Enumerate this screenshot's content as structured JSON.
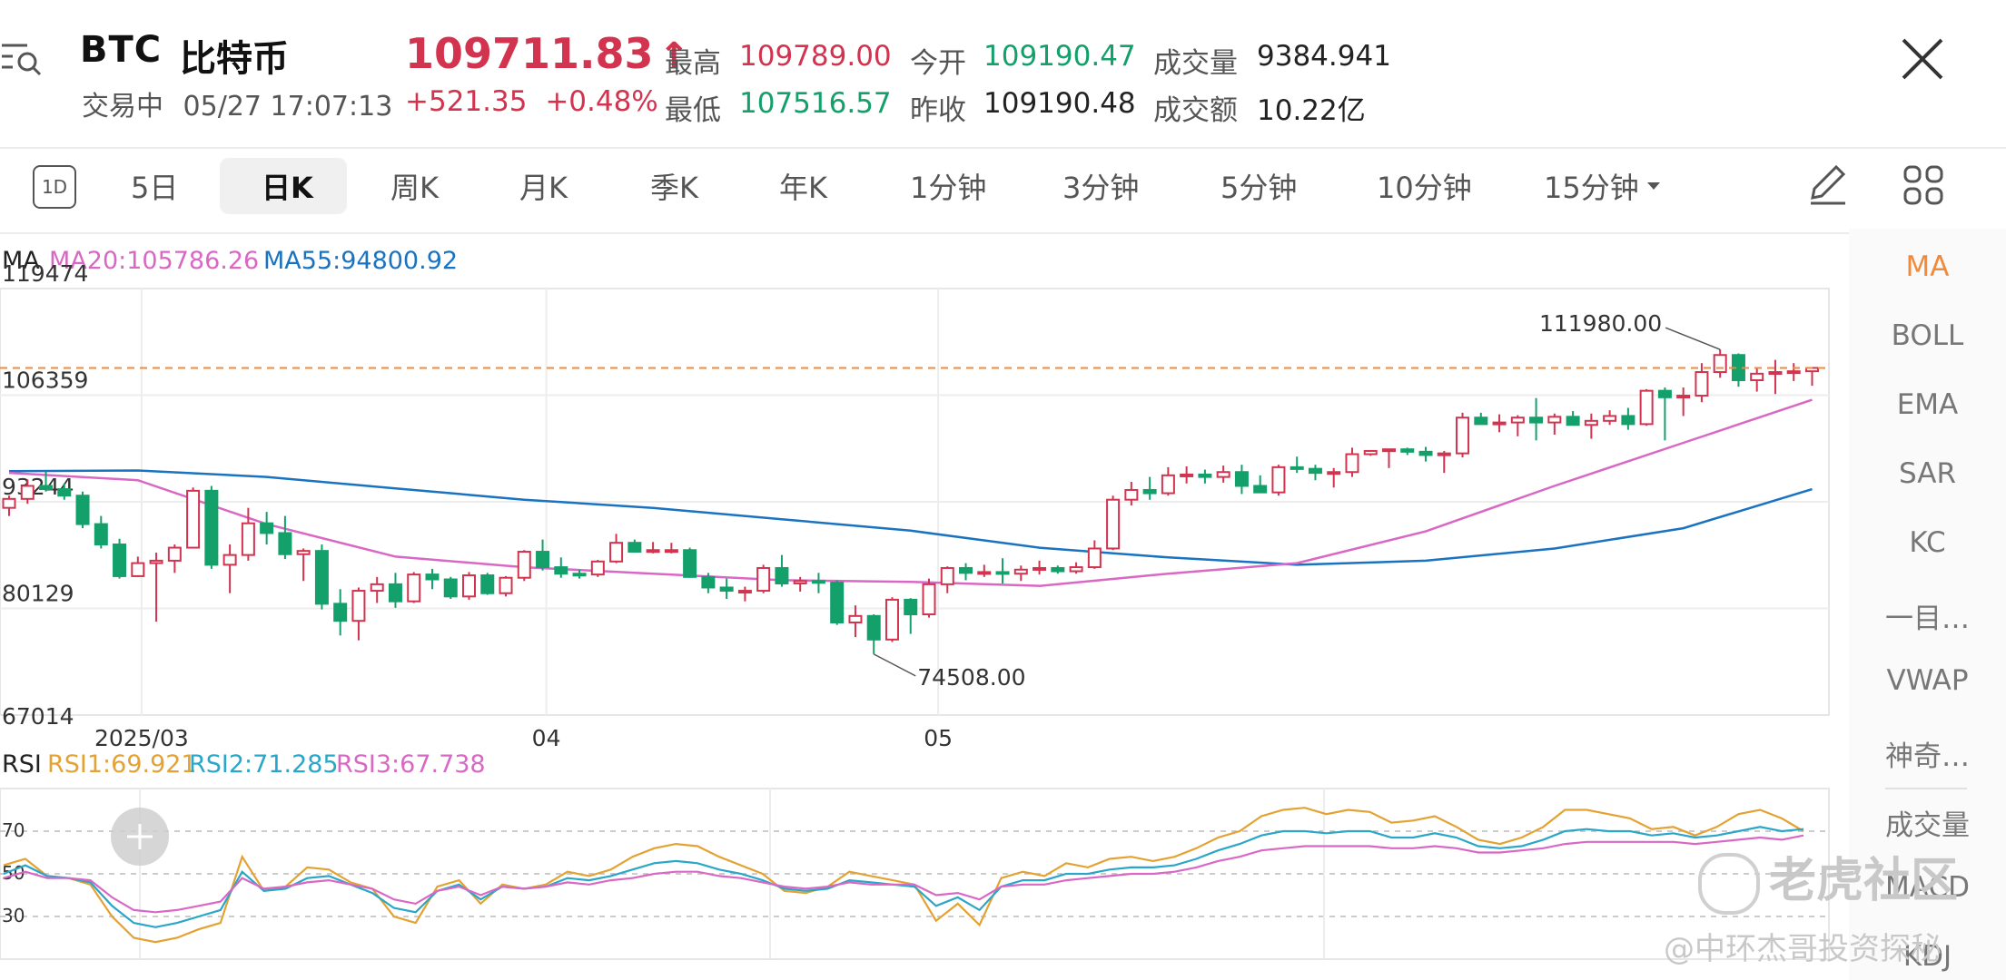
{
  "header": {
    "symbol": "BTC",
    "name": "比特币",
    "status": "交易中",
    "datetime": "05/27 17:07:13",
    "price": "109711.83",
    "price_arrow": "↑",
    "change": "+521.35",
    "change_pct": "+0.48%",
    "stats": {
      "high_label": "最高",
      "high": "109789.00",
      "low_label": "最低",
      "low": "107516.57",
      "open_label": "今开",
      "open": "109190.47",
      "prev_close_label": "昨收",
      "prev_close": "109190.48",
      "volume_label": "成交量",
      "volume": "9384.941",
      "turnover_label": "成交额",
      "turnover": "10.22亿"
    },
    "colors": {
      "up": "#d2334f",
      "down": "#13a06a"
    }
  },
  "toolbar": {
    "icon_1d": "1D",
    "tabs": [
      "5日",
      "日K",
      "周K",
      "月K",
      "季K",
      "年K",
      "1分钟",
      "3分钟",
      "5分钟",
      "10分钟",
      "15分钟"
    ],
    "active": "日K",
    "dropdown_icon": "caret-down-icon",
    "draw_icon": "pencil-icon",
    "layout_icon": "grid-icon"
  },
  "side_panel": {
    "items": [
      "MA",
      "BOLL",
      "EMA",
      "SAR",
      "KC",
      "一目…",
      "VWAP",
      "神奇…",
      "成交量",
      "MACD",
      "KDJ"
    ],
    "active": "MA"
  },
  "main_chart": {
    "legend_label": "MA",
    "ma20_label": "MA20:105786.26",
    "ma55_label": "MA55:94800.92",
    "y_ticks": [
      "119474",
      "106359",
      "93244",
      "80129",
      "67014"
    ],
    "x_ticks": [
      "2025/03",
      "04",
      "05"
    ],
    "high_marker": "111980.00",
    "low_marker": "74508.00",
    "colors": {
      "ma20": "#d968c5",
      "ma55": "#1a73c0",
      "current_line": "#f08a3c"
    }
  },
  "rsi_chart": {
    "legend_label": "RSI",
    "rsi1_label": "RSI1:69.921",
    "rsi2_label": "RSI2:71.285",
    "rsi3_label": "RSI3:67.738",
    "y_ticks": [
      "70",
      "50",
      "30"
    ],
    "colors": {
      "rsi1": "#e3a232",
      "rsi2": "#2aa6c8",
      "rsi3": "#d968c5"
    }
  },
  "watermark": {
    "brand": "老虎社区",
    "author": "@中环杰哥投资探秘"
  },
  "chart_data": [
    {
      "type": "candlestick",
      "title": "",
      "ylim": [
        67014,
        119474
      ],
      "candles": [
        [
          92500,
          94000,
          91500,
          93600
        ],
        [
          93600,
          96000,
          93000,
          95200
        ],
        [
          95200,
          97000,
          94500,
          94800
        ],
        [
          94800,
          95500,
          93500,
          94000
        ],
        [
          94000,
          94500,
          90000,
          90500
        ],
        [
          90500,
          91500,
          87500,
          88000
        ],
        [
          88000,
          88700,
          83800,
          84100
        ],
        [
          84100,
          86500,
          84000,
          85700
        ],
        [
          85700,
          87000,
          78500,
          86000
        ],
        [
          86000,
          88000,
          84500,
          87600
        ],
        [
          87600,
          95000,
          87500,
          94600
        ],
        [
          94600,
          95200,
          85000,
          85500
        ],
        [
          85500,
          88000,
          82000,
          86700
        ],
        [
          86700,
          92500,
          86000,
          90600
        ],
        [
          90600,
          92000,
          88000,
          89400
        ],
        [
          89400,
          91500,
          86200,
          86800
        ],
        [
          86800,
          87500,
          83500,
          87200
        ],
        [
          87200,
          88000,
          80000,
          80700
        ],
        [
          80700,
          82500,
          76800,
          78600
        ],
        [
          78600,
          82700,
          76200,
          82300
        ],
        [
          82300,
          84000,
          80800,
          83100
        ],
        [
          83100,
          84500,
          80200,
          81000
        ],
        [
          81000,
          84600,
          80800,
          84300
        ],
        [
          84300,
          85000,
          82500,
          83700
        ],
        [
          83700,
          84000,
          81300,
          81600
        ],
        [
          81600,
          84600,
          81200,
          84200
        ],
        [
          84200,
          84500,
          81800,
          82000
        ],
        [
          82000,
          84100,
          81600,
          83900
        ],
        [
          83900,
          87300,
          83500,
          87100
        ],
        [
          87100,
          88600,
          84800,
          85200
        ],
        [
          85200,
          86400,
          83900,
          84400
        ],
        [
          84400,
          84900,
          83800,
          84300
        ],
        [
          84300,
          86100,
          84000,
          85900
        ],
        [
          85900,
          89300,
          85700,
          88200
        ],
        [
          88200,
          88600,
          87000,
          87100
        ],
        [
          87100,
          88300,
          86900,
          87300
        ],
        [
          87300,
          88200,
          86900,
          87300
        ],
        [
          87300,
          87600,
          83900,
          84000
        ],
        [
          84000,
          84500,
          82000,
          82700
        ],
        [
          82700,
          83800,
          81300,
          82300
        ],
        [
          82300,
          82800,
          81000,
          82300
        ],
        [
          82300,
          85500,
          82000,
          85100
        ],
        [
          85100,
          86700,
          82800,
          83200
        ],
        [
          83200,
          84000,
          82200,
          83500
        ],
        [
          83500,
          84500,
          82000,
          83300
        ],
        [
          83300,
          83600,
          78100,
          78400
        ],
        [
          78400,
          80500,
          76600,
          79200
        ],
        [
          79200,
          79400,
          74508,
          76300
        ],
        [
          76300,
          81500,
          76000,
          81200
        ],
        [
          81200,
          81400,
          77000,
          79400
        ],
        [
          79400,
          83800,
          79000,
          83100
        ],
        [
          83100,
          85300,
          82000,
          85100
        ],
        [
          85100,
          85700,
          83600,
          84500
        ],
        [
          84500,
          85500,
          84000,
          84600
        ],
        [
          84600,
          86300,
          83200,
          84400
        ],
        [
          84400,
          85400,
          83500,
          84900
        ],
        [
          84900,
          86000,
          84300,
          85100
        ],
        [
          85100,
          85400,
          84400,
          84700
        ],
        [
          84700,
          85800,
          84400,
          85200
        ],
        [
          85200,
          88500,
          85000,
          87500
        ],
        [
          87500,
          94000,
          87300,
          93500
        ],
        [
          93500,
          95700,
          92800,
          94700
        ],
        [
          94700,
          96300,
          93500,
          94300
        ],
        [
          94300,
          97500,
          94000,
          96500
        ],
        [
          96500,
          97600,
          95500,
          96600
        ],
        [
          96600,
          97200,
          95500,
          96300
        ],
        [
          96300,
          97700,
          95600,
          96900
        ],
        [
          96900,
          97800,
          94200,
          95200
        ],
        [
          95200,
          96500,
          94500,
          94400
        ],
        [
          94400,
          97800,
          94000,
          97500
        ],
        [
          97500,
          98800,
          96800,
          97300
        ],
        [
          97300,
          97800,
          95900,
          96800
        ],
        [
          96800,
          97400,
          95000,
          96900
        ],
        [
          96900,
          99900,
          96300,
          99100
        ],
        [
          99100,
          99600,
          98900,
          99500
        ],
        [
          99500,
          99700,
          97400,
          99700
        ],
        [
          99700,
          99900,
          99000,
          99400
        ],
        [
          99400,
          100000,
          98200,
          99000
        ],
        [
          99000,
          99500,
          96800,
          99200
        ],
        [
          99200,
          104200,
          98700,
          103600
        ],
        [
          103600,
          104200,
          102800,
          102800
        ],
        [
          102800,
          104000,
          101800,
          103000
        ],
        [
          103000,
          103900,
          101300,
          103600
        ],
        [
          103600,
          106000,
          100800,
          103000
        ],
        [
          103000,
          104100,
          101500,
          103700
        ],
        [
          103700,
          104400,
          102800,
          102700
        ],
        [
          102700,
          104100,
          101000,
          103200
        ],
        [
          103200,
          104500,
          102700,
          103800
        ],
        [
          103800,
          104800,
          102100,
          102800
        ],
        [
          102800,
          107100,
          102600,
          106900
        ],
        [
          106900,
          107300,
          100800,
          106100
        ],
        [
          106100,
          107300,
          103800,
          106300
        ],
        [
          106300,
          110300,
          105500,
          109200
        ],
        [
          109200,
          111980,
          108500,
          111300
        ],
        [
          111300,
          111500,
          107400,
          108200
        ],
        [
          108200,
          109700,
          106800,
          109000
        ],
        [
          109000,
          110700,
          106500,
          109200
        ],
        [
          109200,
          110300,
          108100,
          109300
        ],
        [
          109300,
          109789,
          107516,
          109712
        ]
      ],
      "ma20": [
        [
          0,
          96800
        ],
        [
          10,
          95900
        ],
        [
          20,
          90500
        ],
        [
          30,
          86500
        ],
        [
          40,
          85200
        ],
        [
          50,
          84400
        ],
        [
          60,
          83600
        ],
        [
          70,
          83400
        ],
        [
          80,
          82900
        ],
        [
          90,
          84400
        ],
        [
          100,
          85700
        ],
        [
          110,
          89600
        ],
        [
          120,
          95200
        ],
        [
          130,
          100500
        ],
        [
          140,
          105786
        ]
      ],
      "ma55": [
        [
          0,
          97000
        ],
        [
          10,
          97100
        ],
        [
          20,
          96300
        ],
        [
          30,
          94900
        ],
        [
          40,
          93500
        ],
        [
          50,
          92500
        ],
        [
          60,
          91100
        ],
        [
          70,
          89700
        ],
        [
          80,
          87600
        ],
        [
          90,
          86400
        ],
        [
          100,
          85500
        ],
        [
          110,
          86000
        ],
        [
          120,
          87500
        ],
        [
          130,
          90000
        ],
        [
          140,
          94800
        ]
      ]
    },
    {
      "type": "line",
      "title": "",
      "ylim": [
        10,
        90
      ],
      "y_ticks": [
        70,
        50,
        30
      ],
      "series": [
        {
          "name": "RSI1",
          "values": [
            54,
            57,
            49,
            48,
            45,
            30,
            20,
            18,
            20,
            24,
            27,
            58,
            42,
            44,
            53,
            52,
            46,
            43,
            30,
            27,
            44,
            47,
            36,
            45,
            43,
            45,
            51,
            49,
            52,
            58,
            62,
            64,
            63,
            58,
            54,
            50,
            42,
            41,
            44,
            51,
            49,
            47,
            45,
            28,
            36,
            26,
            48,
            51,
            49,
            55,
            53,
            57,
            58,
            56,
            58,
            62,
            67,
            70,
            77,
            80,
            81,
            78,
            80,
            79,
            74,
            75,
            77,
            72,
            66,
            64,
            67,
            72,
            80,
            80,
            78,
            76,
            71,
            72,
            68,
            72,
            78,
            80,
            76,
            70
          ]
        },
        {
          "name": "RSI2",
          "values": [
            50,
            54,
            49,
            48,
            46,
            35,
            27,
            25,
            27,
            30,
            33,
            51,
            42,
            43,
            48,
            49,
            45,
            41,
            34,
            32,
            42,
            45,
            38,
            44,
            43,
            44,
            48,
            47,
            49,
            52,
            55,
            56,
            55,
            52,
            50,
            47,
            43,
            42,
            43,
            47,
            46,
            45,
            44,
            35,
            39,
            33,
            44,
            47,
            47,
            50,
            50,
            52,
            53,
            53,
            54,
            57,
            61,
            64,
            68,
            70,
            70,
            69,
            70,
            70,
            67,
            67,
            69,
            67,
            63,
            62,
            63,
            66,
            70,
            71,
            70,
            70,
            68,
            69,
            67,
            68,
            70,
            72,
            70,
            71
          ]
        },
        {
          "name": "RSI3",
          "values": [
            48,
            51,
            48,
            48,
            47,
            39,
            33,
            32,
            33,
            35,
            37,
            48,
            43,
            44,
            46,
            47,
            45,
            43,
            38,
            36,
            42,
            44,
            40,
            44,
            43,
            44,
            46,
            45,
            47,
            48,
            50,
            51,
            51,
            49,
            48,
            46,
            44,
            43,
            44,
            46,
            45,
            45,
            45,
            40,
            41,
            38,
            44,
            45,
            45,
            47,
            48,
            49,
            50,
            50,
            51,
            53,
            56,
            58,
            61,
            62,
            63,
            63,
            63,
            63,
            62,
            62,
            63,
            62,
            60,
            60,
            61,
            62,
            64,
            65,
            65,
            65,
            65,
            65,
            64,
            65,
            66,
            67,
            66,
            68
          ]
        }
      ]
    }
  ]
}
